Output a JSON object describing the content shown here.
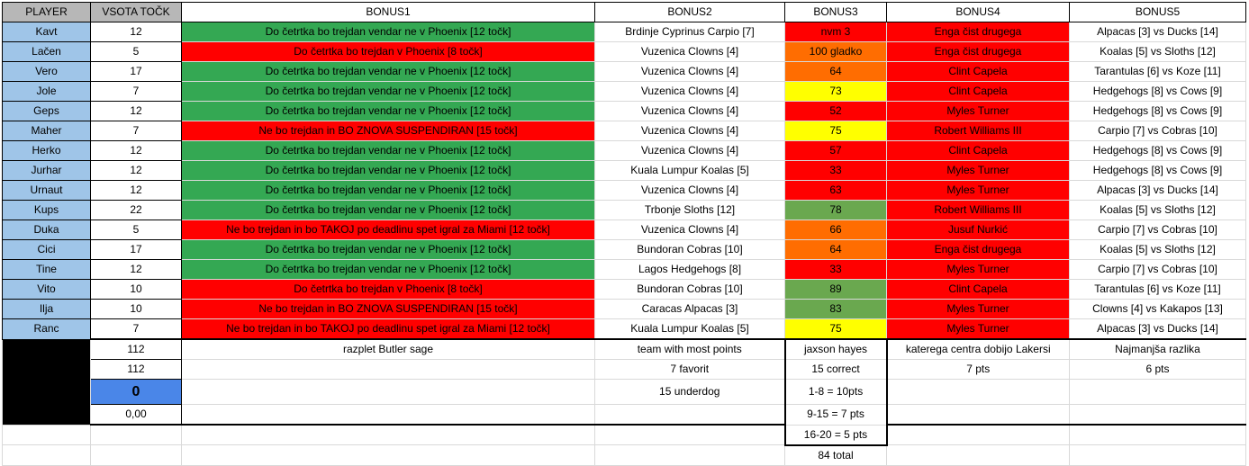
{
  "headers": [
    "PLAYER",
    "VSOTA TOČK",
    "BONUS1",
    "BONUS2",
    "BONUS3",
    "BONUS4",
    "BONUS5"
  ],
  "colors": {
    "green": "#34a853",
    "red": "#ff0000",
    "orange": "#ff6d01",
    "yellow": "#ffff00",
    "lightgreen": "#6aa84f",
    "blue": "#9fc5e8"
  },
  "rows": [
    {
      "player": "Kavt",
      "points": "12",
      "b1": "Do četrtka bo trejdan vendar ne v Phoenix [12 točk]",
      "b1c": "g",
      "b2": "Brdinje Cyprinus Carpio [7]",
      "b3": "nvm 3",
      "b3c": "r",
      "b4": "Enga čist drugega",
      "b5": "Alpacas [3] vs Ducks [14]"
    },
    {
      "player": "Lačen",
      "points": "5",
      "b1": "Do četrtka bo trejdan v Phoenix [8 točk]",
      "b1c": "r",
      "b2": "Vuzenica Clowns [4]",
      "b3": "100 gladko",
      "b3c": "o",
      "b4": "Enga čist drugega",
      "b5": "Koalas [5] vs Sloths [12]"
    },
    {
      "player": "Vero",
      "points": "17",
      "b1": "Do četrtka bo trejdan vendar ne v Phoenix [12 točk]",
      "b1c": "g",
      "b2": "Vuzenica Clowns [4]",
      "b3": "64",
      "b3c": "o",
      "b4": "Clint Capela",
      "b5": "Tarantulas [6] vs Koze [11]"
    },
    {
      "player": "Jole",
      "points": "7",
      "b1": "Do četrtka bo trejdan vendar ne v Phoenix [12 točk]",
      "b1c": "g",
      "b2": "Vuzenica Clowns [4]",
      "b3": "73",
      "b3c": "y",
      "b4": "Clint Capela",
      "b5": "Hedgehogs [8] vs Cows [9]"
    },
    {
      "player": "Geps",
      "points": "12",
      "b1": "Do četrtka bo trejdan vendar ne v Phoenix [12 točk]",
      "b1c": "g",
      "b2": "Vuzenica Clowns [4]",
      "b3": "52",
      "b3c": "r",
      "b4": "Myles Turner",
      "b5": "Hedgehogs [8] vs Cows [9]"
    },
    {
      "player": "Maher",
      "points": "7",
      "b1": "Ne bo trejdan in BO ZNOVA SUSPENDIRAN [15 točk]",
      "b1c": "r",
      "b2": "Vuzenica Clowns [4]",
      "b3": "75",
      "b3c": "y",
      "b4": "Robert Williams III",
      "b5": "Carpio [7] vs Cobras [10]"
    },
    {
      "player": "Herko",
      "points": "12",
      "b1": "Do četrtka bo trejdan vendar ne v Phoenix [12 točk]",
      "b1c": "g",
      "b2": "Vuzenica Clowns [4]",
      "b3": "57",
      "b3c": "r",
      "b4": "Clint Capela",
      "b5": "Hedgehogs [8] vs Cows [9]"
    },
    {
      "player": "Jurhar",
      "points": "12",
      "b1": "Do četrtka bo trejdan vendar ne v Phoenix [12 točk]",
      "b1c": "g",
      "b2": "Kuala Lumpur Koalas [5]",
      "b3": "33",
      "b3c": "r",
      "b4": "Myles Turner",
      "b5": "Hedgehogs [8] vs Cows [9]"
    },
    {
      "player": "Urnaut",
      "points": "12",
      "b1": "Do četrtka bo trejdan vendar ne v Phoenix [12 točk]",
      "b1c": "g",
      "b2": "Vuzenica Clowns [4]",
      "b3": "63",
      "b3c": "r",
      "b4": "Myles Turner",
      "b5": "Alpacas [3] vs Ducks [14]"
    },
    {
      "player": "Kups",
      "points": "22",
      "b1": "Do četrtka bo trejdan vendar ne v Phoenix [12 točk]",
      "b1c": "g",
      "b2": "Trbonje Sloths [12]",
      "b3": "78",
      "b3c": "lg",
      "b4": "Robert Williams III",
      "b5": "Koalas [5] vs Sloths [12]"
    },
    {
      "player": "Duka",
      "points": "5",
      "b1": "Ne bo trejdan in bo TAKOJ po deadlinu spet igral za Miami   [12 točk]",
      "b1c": "r",
      "b2": "Vuzenica Clowns [4]",
      "b3": "66",
      "b3c": "o",
      "b4": "Jusuf Nurkić",
      "b5": "Carpio [7] vs Cobras [10]"
    },
    {
      "player": "Cici",
      "points": "17",
      "b1": "Do četrtka bo trejdan vendar ne v Phoenix [12 točk]",
      "b1c": "g",
      "b2": "Bundoran Cobras [10]",
      "b3": "64",
      "b3c": "o",
      "b4": "Enga čist drugega",
      "b5": "Koalas [5] vs Sloths [12]"
    },
    {
      "player": "Tine",
      "points": "12",
      "b1": "Do četrtka bo trejdan vendar ne v Phoenix [12 točk]",
      "b1c": "g",
      "b2": "Lagos Hedgehogs [8]",
      "b3": "33",
      "b3c": "r",
      "b4": "Myles Turner",
      "b5": "Carpio [7] vs Cobras [10]"
    },
    {
      "player": "Vito",
      "points": "10",
      "b1": "Do četrtka bo trejdan v Phoenix [8 točk]",
      "b1c": "r",
      "b2": "Bundoran Cobras [10]",
      "b3": "89",
      "b3c": "lg",
      "b4": "Clint Capela",
      "b5": "Tarantulas [6] vs Koze [11]"
    },
    {
      "player": "Ilja",
      "points": "10",
      "b1": "Ne bo trejdan in BO ZNOVA SUSPENDIRAN [15 točk]",
      "b1c": "r",
      "b2": "Caracas Alpacas [3]",
      "b3": "83",
      "b3c": "lg",
      "b4": "Myles Turner",
      "b5": "Clowns [4] vs Kakapos [13]"
    },
    {
      "player": "Ranc",
      "points": "7",
      "b1": "Ne bo trejdan in bo TAKOJ po deadlinu spet igral za Miami   [12 točk]",
      "b1c": "r",
      "b2": "Kuala Lumpur Koalas [5]",
      "b3": "75",
      "b3c": "y",
      "b4": "Myles Turner",
      "b5": "Alpacas [3] vs Ducks [14]"
    }
  ],
  "footer": {
    "sum1": "112",
    "sum2": "112",
    "diff": "0",
    "avg": "0,00",
    "b1_note": "razplet Butler sage",
    "b2_title": "team with most points",
    "b2_l1": "7 favorit",
    "b2_l2": "15 underdog",
    "b3_title": "jaxson hayes",
    "b3_l1": "15 correct",
    "b3_l2": "1-8 = 10pts",
    "b3_l3": "9-15 = 7 pts",
    "b3_l4": "16-20 = 5 pts",
    "b3_l5": "84 total",
    "b4_title": "katerega centra dobijo Lakersi",
    "b4_l1": "7 pts",
    "b5_title": "Najmanjša razlika",
    "b5_l1": "6 pts"
  }
}
